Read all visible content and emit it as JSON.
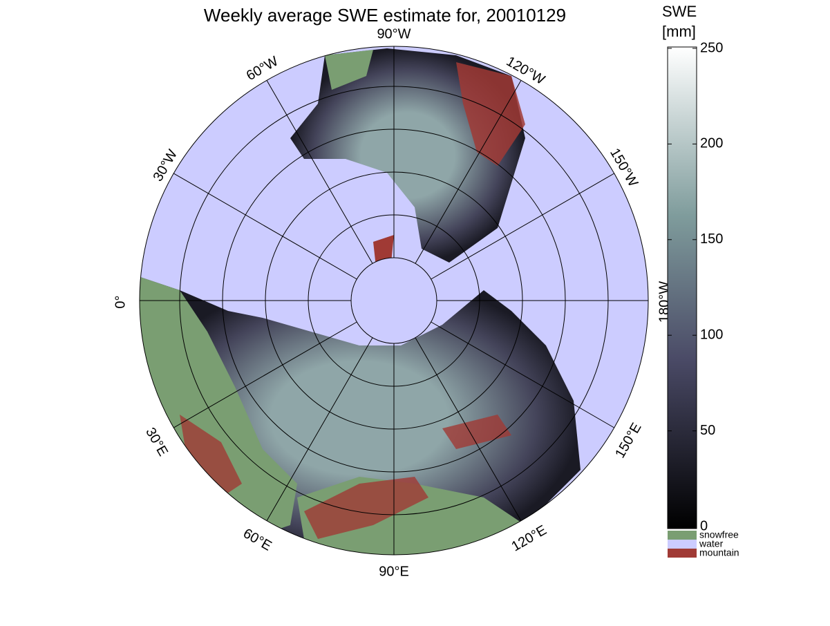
{
  "title": "Weekly average SWE estimate for, 20010129",
  "longitude_labels": [
    "90°W",
    "60°W",
    "30°W",
    "0°",
    "30°E",
    "60°E",
    "90°E",
    "120°E",
    "150°E",
    "180°W",
    "150°W",
    "120°W"
  ],
  "colorbar": {
    "title": [
      "SWE",
      "[mm]"
    ],
    "lim": [
      0,
      250
    ],
    "ticks": [
      0,
      50,
      100,
      150,
      200,
      250
    ]
  },
  "legend": [
    {
      "name": "snowfree",
      "color": "#7a9e72"
    },
    {
      "name": "water",
      "color": "#ccccff"
    },
    {
      "name": "mountain",
      "color": "#a03a35"
    }
  ]
}
